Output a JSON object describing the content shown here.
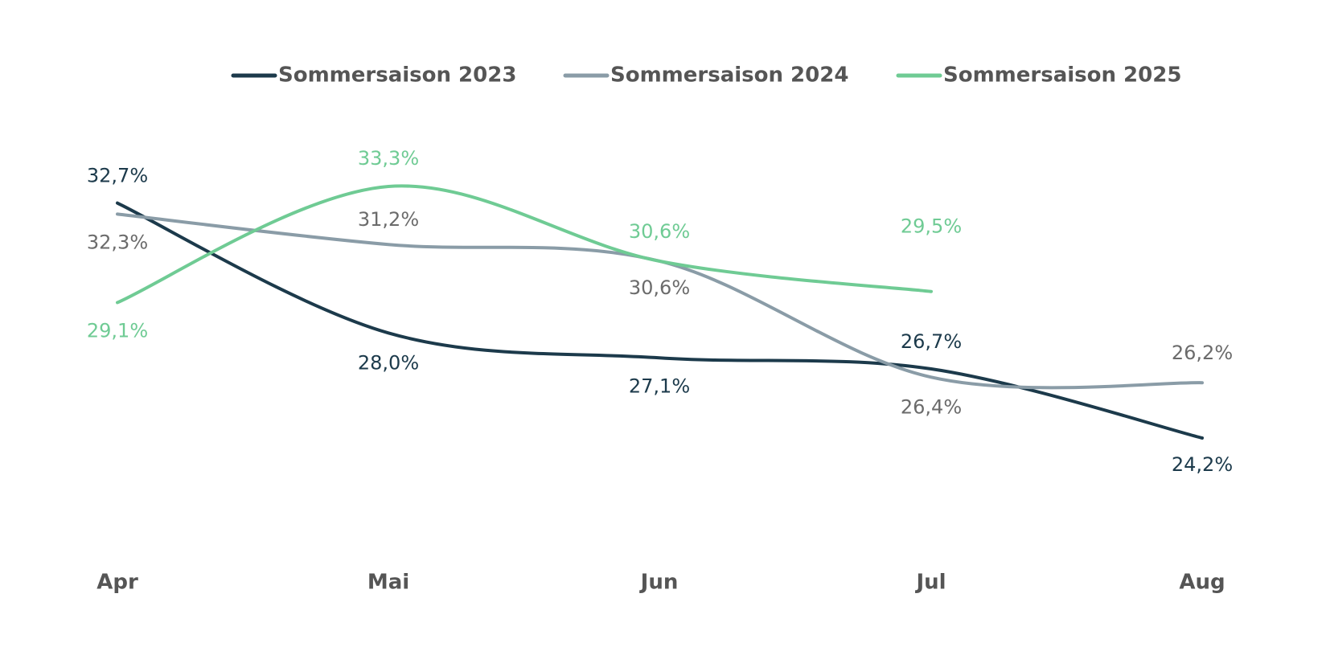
{
  "chart_data": {
    "type": "line",
    "categories": [
      "Apr",
      "Mai",
      "Jun",
      "Jul",
      "Aug"
    ],
    "series": [
      {
        "name": "Sommersaison 2023",
        "color": "#1c3a4b",
        "values": [
          32.7,
          28.0,
          27.1,
          26.7,
          24.2
        ],
        "value_labels": [
          "32,7%",
          "28,0%",
          "27,1%",
          "26,7%",
          "24,2%"
        ]
      },
      {
        "name": "Sommersaison 2024",
        "color": "#8a9ca7",
        "values": [
          32.3,
          31.2,
          30.6,
          26.4,
          26.2
        ],
        "value_labels": [
          "32,3%",
          "31,2%",
          "30,6%",
          "26,4%",
          "26,2%"
        ]
      },
      {
        "name": "Sommersaison 2025",
        "color": "#6fcb94",
        "values": [
          29.1,
          33.3,
          30.6,
          29.5,
          null
        ],
        "value_labels": [
          "29,1%",
          "33,3%",
          "30,6%",
          "29,5%",
          null
        ]
      }
    ],
    "legend": "top"
  }
}
